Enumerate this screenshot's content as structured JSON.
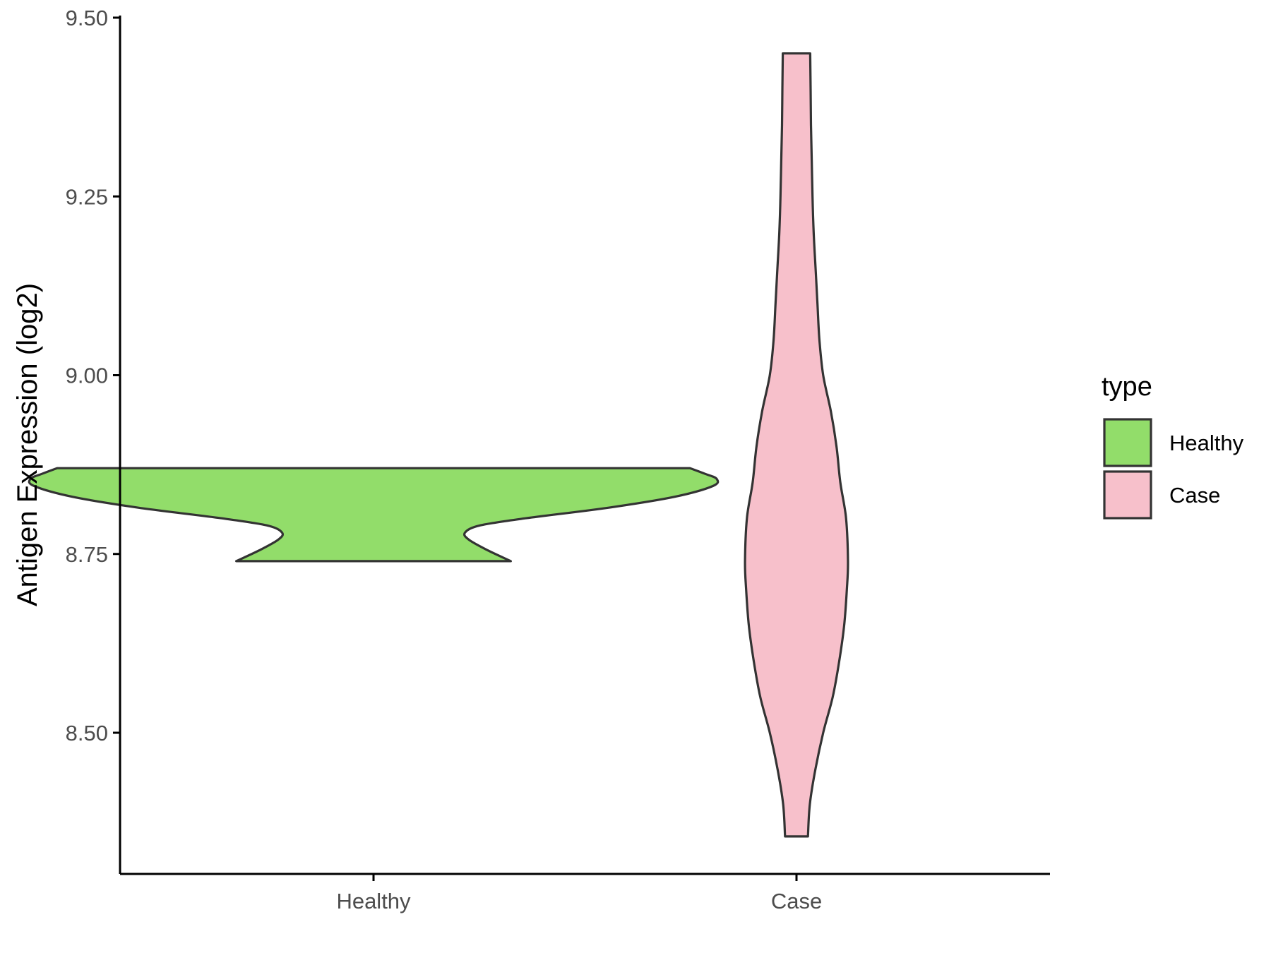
{
  "chart_data": {
    "type": "violin",
    "xlabel": "",
    "ylabel": "Antigen Expression (log2)",
    "ylim": [
      8.3,
      9.5
    ],
    "yticks": [
      8.5,
      8.75,
      9.0,
      9.25,
      9.5
    ],
    "ytick_labels": [
      "8.50",
      "8.75",
      "9.00",
      "9.25",
      "9.50"
    ],
    "categories": [
      "Healthy",
      "Case"
    ],
    "grid": false,
    "legend": {
      "title": "type",
      "position": "right",
      "entries": [
        {
          "label": "Healthy",
          "color": "#92dd6a"
        },
        {
          "label": "Case",
          "color": "#f7c0cb"
        }
      ]
    },
    "series": [
      {
        "name": "Healthy",
        "color": "#92dd6a",
        "min": 8.74,
        "max": 8.87,
        "density": [
          {
            "y": 8.74,
            "w": 0.36
          },
          {
            "y": 8.755,
            "w": 0.3
          },
          {
            "y": 8.77,
            "w": 0.25
          },
          {
            "y": 8.78,
            "w": 0.24
          },
          {
            "y": 8.79,
            "w": 0.28
          },
          {
            "y": 8.8,
            "w": 0.4
          },
          {
            "y": 8.815,
            "w": 0.62
          },
          {
            "y": 8.83,
            "w": 0.79
          },
          {
            "y": 8.845,
            "w": 0.89
          },
          {
            "y": 8.855,
            "w": 0.9
          },
          {
            "y": 8.862,
            "w": 0.87
          },
          {
            "y": 8.87,
            "w": 0.83
          }
        ]
      },
      {
        "name": "Case",
        "color": "#f7c0cb",
        "min": 8.355,
        "max": 9.45,
        "density": [
          {
            "y": 8.355,
            "w": 0.03
          },
          {
            "y": 8.4,
            "w": 0.035
          },
          {
            "y": 8.45,
            "w": 0.05
          },
          {
            "y": 8.5,
            "w": 0.07
          },
          {
            "y": 8.55,
            "w": 0.095
          },
          {
            "y": 8.6,
            "w": 0.112
          },
          {
            "y": 8.65,
            "w": 0.125
          },
          {
            "y": 8.7,
            "w": 0.132
          },
          {
            "y": 8.74,
            "w": 0.135
          },
          {
            "y": 8.8,
            "w": 0.13
          },
          {
            "y": 8.85,
            "w": 0.115
          },
          {
            "y": 8.9,
            "w": 0.105
          },
          {
            "y": 8.95,
            "w": 0.09
          },
          {
            "y": 9.0,
            "w": 0.07
          },
          {
            "y": 9.05,
            "w": 0.06
          },
          {
            "y": 9.1,
            "w": 0.055
          },
          {
            "y": 9.15,
            "w": 0.05
          },
          {
            "y": 9.2,
            "w": 0.045
          },
          {
            "y": 9.25,
            "w": 0.042
          },
          {
            "y": 9.3,
            "w": 0.04
          },
          {
            "y": 9.35,
            "w": 0.038
          },
          {
            "y": 9.4,
            "w": 0.037
          },
          {
            "y": 9.45,
            "w": 0.036
          }
        ]
      }
    ]
  }
}
